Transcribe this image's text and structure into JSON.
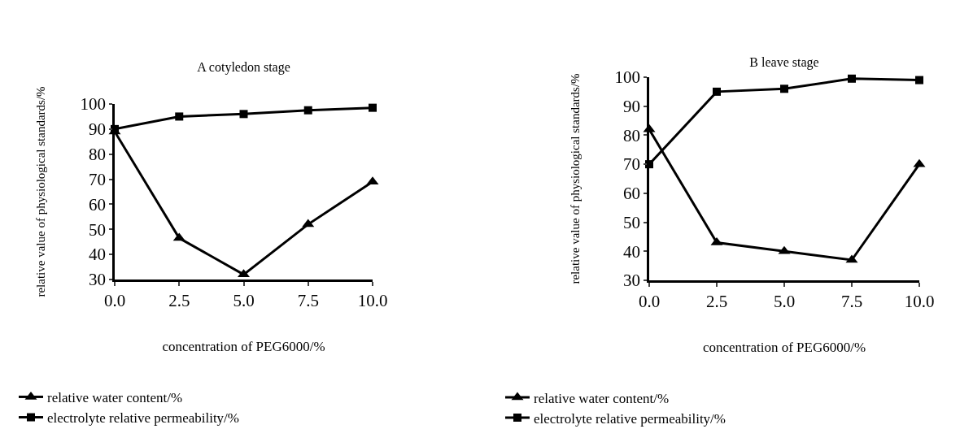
{
  "chart_data": [
    {
      "type": "line",
      "title": "A cotyledon stage",
      "xlabel": "concentration of PEG6000/%",
      "ylabel": "relative value of physiological standards/%",
      "x": [
        0,
        2.5,
        5,
        7.5,
        10
      ],
      "series": [
        {
          "name": "relative water content/%",
          "color": "#000000",
          "marker": "triangle",
          "values": [
            89,
            46.5,
            32,
            52,
            69
          ]
        },
        {
          "name": "electrolyte relative permeability/%",
          "color": "#000000",
          "marker": "square",
          "values": [
            90,
            95,
            96,
            97.5,
            98.5
          ]
        }
      ],
      "xlim": [
        0,
        10
      ],
      "xticks": [
        {
          "value": 0,
          "label": "0.0"
        },
        {
          "value": 2.5,
          "label": "2.5"
        },
        {
          "value": 5,
          "label": "5.0"
        },
        {
          "value": 7.5,
          "label": "7.5"
        },
        {
          "value": 10,
          "label": "10.0"
        }
      ],
      "ylim": [
        30,
        100
      ],
      "yticks": [
        30,
        40,
        50,
        60,
        70,
        80,
        90,
        100
      ],
      "grid": false,
      "legend": "bottom",
      "line_style": "solid"
    },
    {
      "type": "line",
      "title": "B leave stage",
      "xlabel": "concentration of PEG6000/%",
      "ylabel": "relative value of physiological standards/%",
      "x": [
        0,
        2.5,
        5,
        7.5,
        10
      ],
      "series": [
        {
          "name": "relative water content/%",
          "color": "#000000",
          "marker": "triangle",
          "values": [
            82,
            43,
            40,
            37,
            70
          ]
        },
        {
          "name": "electrolyte relative permeability/%",
          "color": "#000000",
          "marker": "square",
          "values": [
            70,
            95,
            96,
            99.5,
            99
          ]
        }
      ],
      "xlim": [
        0,
        10
      ],
      "xticks": [
        {
          "value": 0,
          "label": "0.0"
        },
        {
          "value": 2.5,
          "label": "2.5"
        },
        {
          "value": 5,
          "label": "5.0"
        },
        {
          "value": 7.5,
          "label": "7.5"
        },
        {
          "value": 10,
          "label": "10.0"
        }
      ],
      "ylim": [
        30,
        100
      ],
      "yticks": [
        30,
        40,
        50,
        60,
        70,
        80,
        90,
        100
      ],
      "grid": false,
      "legend": "bottom",
      "line_style": "solid"
    }
  ]
}
